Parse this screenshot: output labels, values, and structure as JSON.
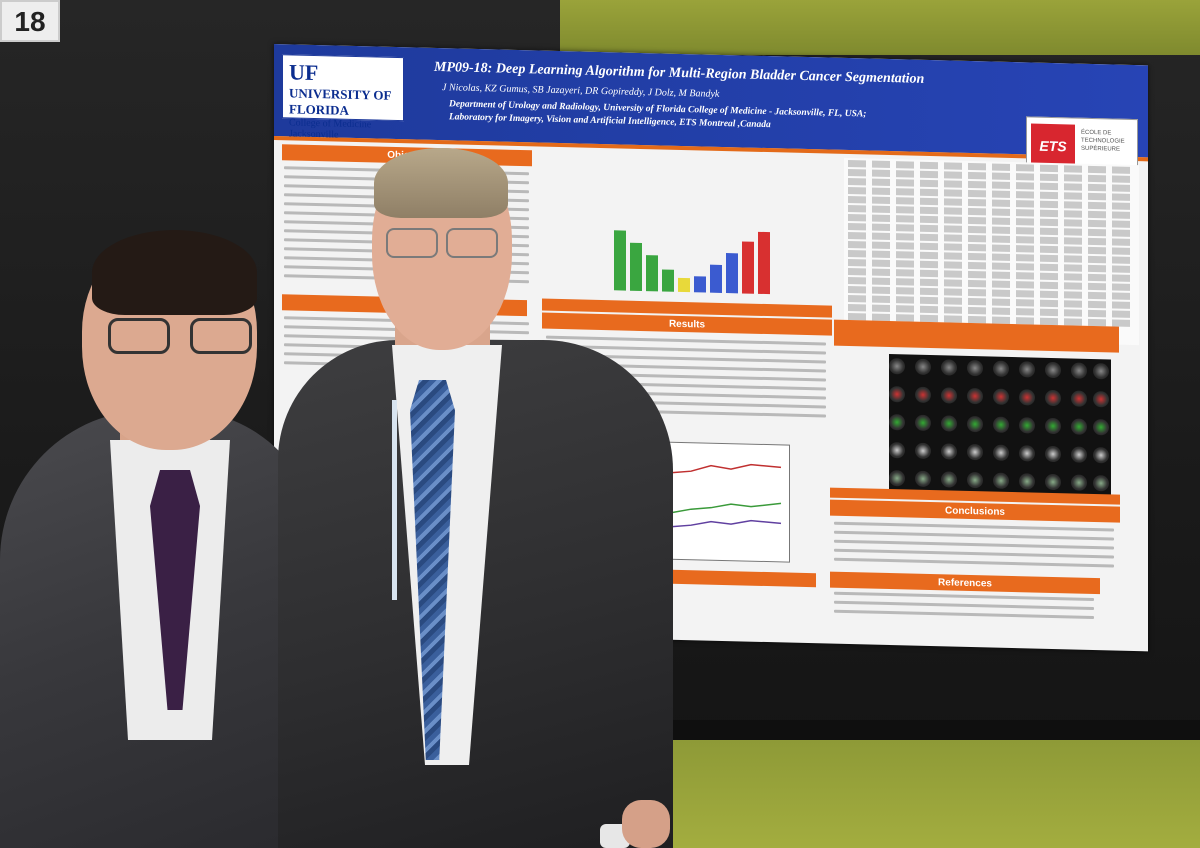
{
  "booth_number": "18",
  "poster": {
    "logo_left": {
      "uf": "UF",
      "university": "UNIVERSITY OF FLORIDA",
      "college": "College of Medicine",
      "campus": "Jacksonville"
    },
    "title": "MP09-18:  Deep Learning Algorithm for  Multi-Region Bladder Cancer Segmentation",
    "authors": "J Nicolas, KZ  Gumus,  SB Jazayeri, DR Gopireddy, J Dolz, M Bandyk",
    "department_line1": "Department of Urology and Radiology, University of Florida College of Medicine - Jacksonville, FL, USA;",
    "department_line2": "Laboratory for Imagery, Vision and  Artificial Intelligence, ETS Montreal ,Canada",
    "logo_right": {
      "mark": "ETS",
      "text": "ÉCOLE DE TECHNOLOGIE SUPÉRIEURE"
    },
    "sections": {
      "objective": "Objectiv",
      "materials": "Mater",
      "results": "Results",
      "conclusions": "Conclusions",
      "references": "References"
    }
  },
  "colors": {
    "poster_header": "#2744b5",
    "section_bar": "#e86a1e",
    "wall_green": "#9aa33a",
    "board": "#1f1f1f"
  }
}
